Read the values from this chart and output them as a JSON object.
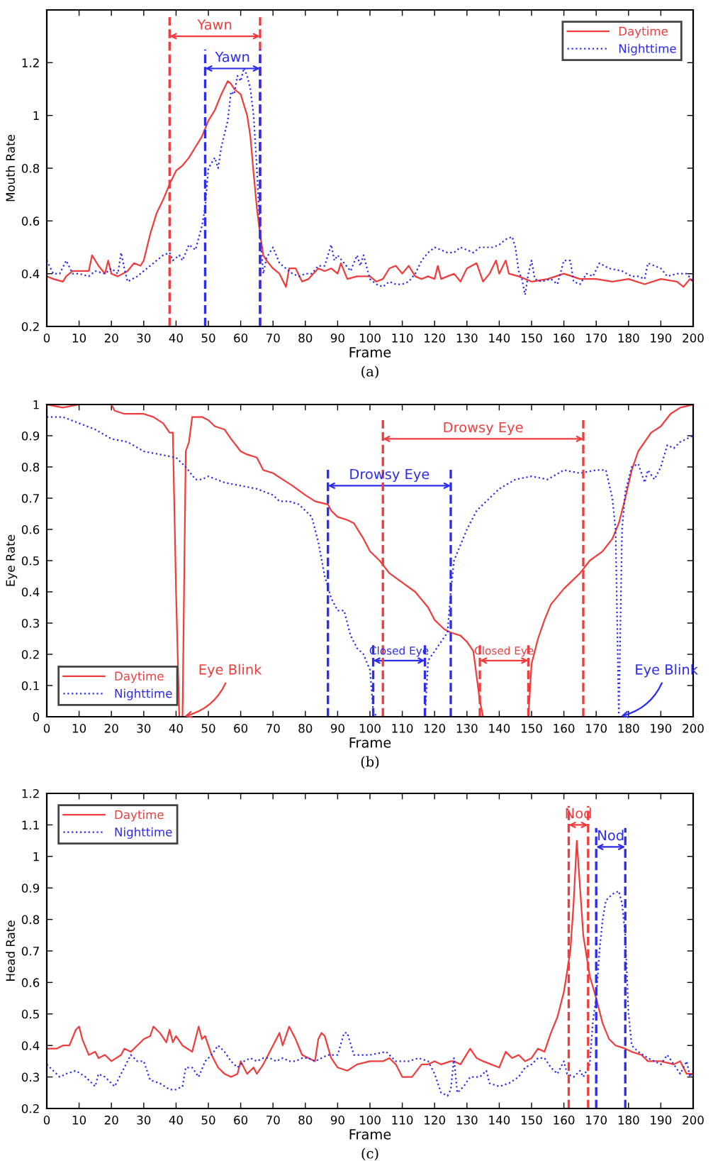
{
  "chart_data": [
    {
      "type": "line",
      "xlabel": "Frame",
      "ylabel": "Mouth Rate",
      "xlim": [
        0,
        200
      ],
      "xticks": [
        0,
        10,
        20,
        30,
        40,
        50,
        60,
        70,
        80,
        90,
        100,
        110,
        120,
        130,
        140,
        150,
        160,
        170,
        180,
        190,
        200
      ],
      "ylim": [
        0.2,
        1.4
      ],
      "yticks": [
        0.2,
        0.4,
        0.6,
        0.8,
        1,
        1.2
      ],
      "legend": "top right",
      "series": [
        {
          "name": "Daytime",
          "color": "#f03c3c",
          "line_style": "solid",
          "x": [
            0,
            2,
            5,
            6,
            8,
            13,
            14,
            16,
            18,
            19,
            20,
            22,
            25,
            27,
            29,
            30,
            32,
            34,
            36,
            38,
            40,
            42,
            44,
            46,
            48,
            50,
            52,
            54,
            56,
            57,
            58,
            60,
            62,
            63,
            64,
            65,
            66,
            67,
            68,
            70,
            72,
            74,
            75,
            77,
            79,
            81,
            84,
            86,
            88,
            90,
            91,
            93,
            96,
            100,
            102,
            104,
            106,
            108,
            110,
            112,
            114,
            116,
            118,
            120,
            121,
            122,
            124,
            126,
            128,
            130,
            133,
            135,
            137,
            139,
            140,
            142,
            143,
            146,
            150,
            155,
            160,
            165,
            170,
            175,
            180,
            185,
            190,
            195,
            197,
            199,
            200
          ],
          "values": [
            0.39,
            0.38,
            0.37,
            0.39,
            0.41,
            0.41,
            0.47,
            0.43,
            0.4,
            0.45,
            0.4,
            0.39,
            0.41,
            0.44,
            0.43,
            0.45,
            0.55,
            0.63,
            0.68,
            0.74,
            0.79,
            0.81,
            0.84,
            0.88,
            0.92,
            0.98,
            1.02,
            1.08,
            1.13,
            1.12,
            1.1,
            1.08,
            1.0,
            0.92,
            0.78,
            0.65,
            0.55,
            0.47,
            0.45,
            0.42,
            0.4,
            0.35,
            0.42,
            0.42,
            0.37,
            0.38,
            0.42,
            0.41,
            0.42,
            0.4,
            0.44,
            0.38,
            0.39,
            0.39,
            0.37,
            0.38,
            0.42,
            0.43,
            0.4,
            0.43,
            0.39,
            0.38,
            0.39,
            0.38,
            0.43,
            0.38,
            0.39,
            0.4,
            0.37,
            0.42,
            0.44,
            0.37,
            0.4,
            0.45,
            0.4,
            0.45,
            0.4,
            0.39,
            0.37,
            0.38,
            0.4,
            0.38,
            0.38,
            0.37,
            0.38,
            0.36,
            0.38,
            0.37,
            0.35,
            0.38,
            0.37
          ]
        },
        {
          "name": "Nighttime",
          "color": "#2c2cf0",
          "line_style": "dotted",
          "x": [
            0,
            2,
            4,
            6,
            8,
            10,
            13,
            15,
            18,
            20,
            22,
            23,
            24,
            25,
            28,
            30,
            33,
            36,
            38,
            39,
            41,
            42,
            44,
            46,
            48,
            49,
            50,
            52,
            53,
            54,
            56,
            57,
            58,
            59,
            60,
            61,
            62,
            63,
            64,
            65,
            66,
            67,
            68,
            70,
            72,
            74,
            76,
            78,
            80,
            82,
            84,
            86,
            88,
            89,
            90,
            92,
            94,
            96,
            97,
            98,
            100,
            102,
            104,
            106,
            108,
            110,
            112,
            114,
            116,
            118,
            120,
            124,
            126,
            128,
            130,
            132,
            134,
            136,
            138,
            140,
            142,
            144,
            145,
            146,
            147,
            148,
            149,
            150,
            151,
            153,
            156,
            158,
            160,
            162,
            163,
            165,
            167,
            169,
            171,
            174,
            178,
            181,
            183,
            185,
            186,
            188,
            190,
            192,
            195,
            198,
            200
          ],
          "values": [
            0.45,
            0.4,
            0.4,
            0.45,
            0.4,
            0.4,
            0.39,
            0.41,
            0.4,
            0.42,
            0.4,
            0.48,
            0.42,
            0.37,
            0.39,
            0.41,
            0.44,
            0.47,
            0.48,
            0.45,
            0.47,
            0.45,
            0.51,
            0.49,
            0.58,
            0.65,
            0.8,
            0.84,
            0.8,
            0.88,
            0.98,
            1.09,
            1.08,
            1.15,
            1.13,
            1.18,
            1.15,
            1.1,
            1.0,
            0.8,
            0.55,
            0.4,
            0.46,
            0.5,
            0.44,
            0.42,
            0.4,
            0.39,
            0.4,
            0.4,
            0.43,
            0.43,
            0.51,
            0.45,
            0.47,
            0.44,
            0.41,
            0.47,
            0.43,
            0.47,
            0.38,
            0.36,
            0.35,
            0.37,
            0.36,
            0.36,
            0.37,
            0.4,
            0.45,
            0.48,
            0.5,
            0.48,
            0.48,
            0.5,
            0.49,
            0.48,
            0.5,
            0.5,
            0.5,
            0.51,
            0.53,
            0.54,
            0.5,
            0.41,
            0.38,
            0.32,
            0.4,
            0.45,
            0.38,
            0.37,
            0.38,
            0.36,
            0.45,
            0.45,
            0.37,
            0.36,
            0.4,
            0.39,
            0.44,
            0.42,
            0.41,
            0.39,
            0.39,
            0.38,
            0.44,
            0.43,
            0.42,
            0.39,
            0.4,
            0.4,
            0.37
          ]
        }
      ],
      "ref_lines": [
        {
          "axis": "x",
          "value": 38,
          "color": "#f03c3c",
          "line_style": "dashed"
        },
        {
          "axis": "x",
          "value": 66,
          "color": "#f03c3c",
          "line_style": "dashed"
        },
        {
          "axis": "x",
          "value": 49,
          "color": "#2c2cf0",
          "line_style": "dashed"
        },
        {
          "axis": "x",
          "value": 66,
          "color": "#2c2cf0",
          "line_style": "dashed"
        }
      ],
      "annotations": [
        "Yawn",
        "Yawn",
        "(a)"
      ]
    },
    {
      "type": "line",
      "xlabel": "Frame",
      "ylabel": "Eye Rate",
      "xlim": [
        0,
        200
      ],
      "xticks": [
        0,
        10,
        20,
        30,
        40,
        50,
        60,
        70,
        80,
        90,
        100,
        110,
        120,
        130,
        140,
        150,
        160,
        170,
        180,
        190,
        200
      ],
      "ylim": [
        0,
        1
      ],
      "yticks": [
        0,
        0.1,
        0.2,
        0.3,
        0.4,
        0.5,
        0.6,
        0.7,
        0.8,
        0.9,
        1
      ],
      "legend": "bottom left",
      "series": [
        {
          "name": "Daytime",
          "color": "#f03c3c",
          "line_style": "solid",
          "x": [
            0,
            5,
            10,
            20,
            21,
            24,
            30,
            33,
            36,
            38,
            39,
            40,
            41,
            42,
            43,
            44,
            45,
            48,
            50,
            52,
            55,
            57,
            60,
            62,
            65,
            67,
            70,
            73,
            76,
            80,
            83,
            87,
            88,
            90,
            93,
            95,
            98,
            100,
            103,
            106,
            110,
            114,
            118,
            120,
            123,
            125,
            128,
            130,
            132,
            134,
            135,
            140,
            145,
            149,
            150,
            152,
            154,
            156,
            160,
            165,
            168,
            172,
            175,
            177,
            179,
            181,
            183,
            187,
            190,
            193,
            196,
            200
          ],
          "values": [
            1.0,
            0.99,
            1.0,
            1.0,
            0.98,
            0.97,
            0.97,
            0.96,
            0.94,
            0.91,
            0.91,
            0.4,
            0.0,
            0.0,
            0.85,
            0.88,
            0.96,
            0.96,
            0.95,
            0.93,
            0.92,
            0.89,
            0.85,
            0.84,
            0.83,
            0.79,
            0.78,
            0.76,
            0.74,
            0.71,
            0.69,
            0.68,
            0.66,
            0.64,
            0.63,
            0.62,
            0.57,
            0.53,
            0.5,
            0.46,
            0.43,
            0.4,
            0.35,
            0.31,
            0.28,
            0.27,
            0.26,
            0.24,
            0.21,
            0.05,
            0.0,
            0.0,
            0.0,
            0.0,
            0.17,
            0.25,
            0.31,
            0.36,
            0.41,
            0.46,
            0.5,
            0.53,
            0.57,
            0.62,
            0.7,
            0.79,
            0.85,
            0.91,
            0.93,
            0.97,
            0.99,
            1.0
          ]
        },
        {
          "name": "Nighttime",
          "color": "#2c2cf0",
          "line_style": "dotted",
          "x": [
            0,
            5,
            10,
            15,
            20,
            25,
            30,
            35,
            40,
            43,
            46,
            48,
            50,
            55,
            60,
            65,
            70,
            72,
            75,
            78,
            80,
            82,
            84,
            86,
            88,
            90,
            92,
            94,
            96,
            98,
            100,
            101,
            102,
            110,
            117,
            118,
            120,
            122,
            124,
            125,
            126,
            128,
            130,
            133,
            136,
            140,
            145,
            150,
            155,
            160,
            165,
            170,
            173,
            175,
            176,
            177,
            178,
            179,
            181,
            183,
            185,
            186,
            188,
            190,
            192,
            194,
            196,
            200
          ],
          "values": [
            0.96,
            0.96,
            0.94,
            0.92,
            0.89,
            0.88,
            0.85,
            0.84,
            0.83,
            0.8,
            0.76,
            0.76,
            0.77,
            0.75,
            0.74,
            0.73,
            0.71,
            0.69,
            0.69,
            0.68,
            0.66,
            0.64,
            0.56,
            0.45,
            0.38,
            0.34,
            0.34,
            0.26,
            0.22,
            0.2,
            0.15,
            0.02,
            0.0,
            0.0,
            0.0,
            0.18,
            0.21,
            0.24,
            0.27,
            0.4,
            0.5,
            0.55,
            0.6,
            0.66,
            0.69,
            0.73,
            0.76,
            0.77,
            0.76,
            0.79,
            0.78,
            0.79,
            0.79,
            0.7,
            0.6,
            0.0,
            0.6,
            0.72,
            0.8,
            0.81,
            0.75,
            0.79,
            0.76,
            0.8,
            0.87,
            0.86,
            0.88,
            0.9
          ]
        }
      ],
      "ref_lines": [
        {
          "axis": "x",
          "value": 104,
          "color": "#f03c3c",
          "line_style": "dashed"
        },
        {
          "axis": "x",
          "value": 166,
          "color": "#f03c3c",
          "line_style": "dashed"
        },
        {
          "axis": "x",
          "value": 87,
          "color": "#2c2cf0",
          "line_style": "dashed"
        },
        {
          "axis": "x",
          "value": 125,
          "color": "#2c2cf0",
          "line_style": "dashed"
        },
        {
          "axis": "x",
          "value": 101,
          "color": "#2c2cf0",
          "line_style": "dashed"
        },
        {
          "axis": "x",
          "value": 117,
          "color": "#2c2cf0",
          "line_style": "dashed"
        },
        {
          "axis": "x",
          "value": 134,
          "color": "#f03c3c",
          "line_style": "dashed"
        },
        {
          "axis": "x",
          "value": 149,
          "color": "#f03c3c",
          "line_style": "dashed"
        }
      ],
      "annotations": [
        "Drowsy Eye",
        "Drowsy Eye",
        "Closed Eye",
        "Closed Eye",
        {
          "text": "Eye Blink",
          "x": 42,
          "y": 0.0
        },
        {
          "text": "Eye Blink",
          "x": 177,
          "y": 0.0
        },
        "(b)"
      ]
    },
    {
      "type": "line",
      "xlabel": "Frame",
      "ylabel": "Head Rate",
      "xlim": [
        0,
        200
      ],
      "xticks": [
        0,
        10,
        20,
        30,
        40,
        50,
        60,
        70,
        80,
        90,
        100,
        110,
        120,
        130,
        140,
        150,
        160,
        170,
        180,
        190,
        200
      ],
      "ylim": [
        0.2,
        1.2
      ],
      "yticks": [
        0.2,
        0.3,
        0.4,
        0.5,
        0.6,
        0.7,
        0.8,
        0.9,
        1,
        1.1,
        1.2
      ],
      "legend": "top left",
      "series": [
        {
          "name": "Daytime",
          "color": "#f03c3c",
          "line_style": "solid",
          "x": [
            0,
            3,
            5,
            7,
            9,
            10,
            11,
            13,
            15,
            16,
            18,
            20,
            23,
            24,
            26,
            28,
            30,
            32,
            33,
            35,
            37,
            38,
            39,
            40,
            42,
            45,
            47,
            48,
            49,
            51,
            53,
            55,
            57,
            59,
            60,
            62,
            64,
            65,
            67,
            70,
            72,
            73,
            75,
            77,
            79,
            81,
            83,
            84,
            85,
            86,
            88,
            90,
            93,
            96,
            100,
            104,
            106,
            108,
            110,
            113,
            116,
            118,
            120,
            122,
            125,
            126,
            128,
            131,
            133,
            135,
            140,
            142,
            144,
            146,
            148,
            150,
            152,
            154,
            156,
            158,
            160,
            162,
            163,
            164,
            165,
            166,
            168,
            170,
            172,
            174,
            176,
            179,
            181,
            184,
            186,
            190,
            194,
            196,
            198,
            200
          ],
          "values": [
            0.39,
            0.39,
            0.4,
            0.4,
            0.45,
            0.46,
            0.42,
            0.37,
            0.38,
            0.36,
            0.37,
            0.35,
            0.37,
            0.39,
            0.38,
            0.4,
            0.42,
            0.43,
            0.46,
            0.44,
            0.41,
            0.45,
            0.41,
            0.43,
            0.4,
            0.38,
            0.46,
            0.42,
            0.43,
            0.37,
            0.33,
            0.31,
            0.3,
            0.31,
            0.35,
            0.31,
            0.33,
            0.31,
            0.34,
            0.4,
            0.44,
            0.4,
            0.46,
            0.42,
            0.37,
            0.36,
            0.35,
            0.42,
            0.44,
            0.43,
            0.36,
            0.33,
            0.32,
            0.34,
            0.35,
            0.35,
            0.36,
            0.34,
            0.3,
            0.3,
            0.34,
            0.34,
            0.35,
            0.34,
            0.35,
            0.35,
            0.34,
            0.39,
            0.36,
            0.35,
            0.33,
            0.38,
            0.36,
            0.37,
            0.35,
            0.36,
            0.39,
            0.38,
            0.44,
            0.49,
            0.57,
            0.7,
            0.85,
            1.05,
            0.9,
            0.75,
            0.62,
            0.55,
            0.47,
            0.42,
            0.4,
            0.39,
            0.38,
            0.37,
            0.35,
            0.35,
            0.34,
            0.35,
            0.31,
            0.31
          ]
        },
        {
          "name": "Nighttime",
          "color": "#2c2cf0",
          "line_style": "dotted",
          "x": [
            0,
            2,
            4,
            6,
            9,
            12,
            15,
            16,
            18,
            20,
            21,
            23,
            26,
            28,
            30,
            32,
            35,
            38,
            40,
            42,
            43,
            45,
            47,
            49,
            51,
            53,
            55,
            57,
            59,
            61,
            63,
            65,
            67,
            69,
            71,
            73,
            75,
            77,
            79,
            81,
            83,
            85,
            87,
            90,
            92,
            93,
            95,
            100,
            105,
            108,
            112,
            115,
            118,
            120,
            122,
            124,
            125,
            126,
            127,
            129,
            131,
            134,
            136,
            137,
            140,
            143,
            146,
            148,
            150,
            152,
            154,
            156,
            158,
            160,
            161,
            163,
            165,
            166,
            168,
            169,
            170,
            171,
            172,
            173,
            175,
            177,
            178,
            179,
            180,
            181,
            183,
            186,
            190,
            192,
            194,
            196,
            198,
            199,
            200
          ],
          "values": [
            0.34,
            0.32,
            0.3,
            0.31,
            0.32,
            0.3,
            0.27,
            0.31,
            0.3,
            0.28,
            0.27,
            0.31,
            0.37,
            0.35,
            0.35,
            0.29,
            0.28,
            0.26,
            0.26,
            0.27,
            0.33,
            0.33,
            0.3,
            0.35,
            0.37,
            0.4,
            0.38,
            0.35,
            0.33,
            0.35,
            0.36,
            0.35,
            0.36,
            0.36,
            0.35,
            0.36,
            0.35,
            0.35,
            0.36,
            0.36,
            0.35,
            0.36,
            0.37,
            0.37,
            0.44,
            0.44,
            0.37,
            0.37,
            0.38,
            0.35,
            0.35,
            0.36,
            0.35,
            0.31,
            0.25,
            0.24,
            0.26,
            0.36,
            0.25,
            0.27,
            0.3,
            0.3,
            0.32,
            0.28,
            0.27,
            0.28,
            0.3,
            0.33,
            0.34,
            0.36,
            0.36,
            0.33,
            0.31,
            0.35,
            0.31,
            0.3,
            0.32,
            0.3,
            0.34,
            0.48,
            0.55,
            0.7,
            0.8,
            0.86,
            0.88,
            0.89,
            0.85,
            0.75,
            0.5,
            0.4,
            0.38,
            0.36,
            0.34,
            0.37,
            0.34,
            0.31,
            0.35,
            0.3,
            0.32
          ]
        }
      ],
      "ref_lines": [
        {
          "axis": "x",
          "value": 161.5,
          "color": "#f03c3c",
          "line_style": "dashed"
        },
        {
          "axis": "x",
          "value": 167.5,
          "color": "#f03c3c",
          "line_style": "dashed"
        },
        {
          "axis": "x",
          "value": 170,
          "color": "#2c2cf0",
          "line_style": "dashed"
        },
        {
          "axis": "x",
          "value": 179,
          "color": "#2c2cf0",
          "line_style": "dashed"
        }
      ],
      "annotations": [
        "Nod",
        "Nod",
        "(c)"
      ]
    }
  ]
}
